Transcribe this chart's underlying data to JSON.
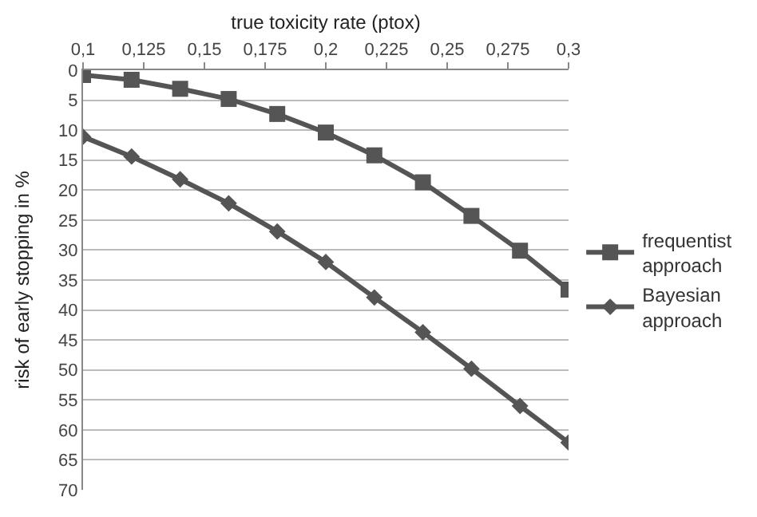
{
  "chart_data": {
    "type": "line",
    "xlabel": "true toxicity rate (ptox)",
    "ylabel": "risk of early stopping in %",
    "x": [
      0.1,
      0.12,
      0.14,
      0.16,
      0.18,
      0.2,
      0.22,
      0.24,
      0.26,
      0.28,
      0.3
    ],
    "series": [
      {
        "name": "frequentist approach",
        "color": "#555555",
        "marker": "square",
        "values": [
          0.8,
          1.6,
          3.1,
          4.8,
          7.3,
          10.4,
          14.2,
          18.7,
          24.3,
          30.1,
          36.6
        ]
      },
      {
        "name": "Bayesian approach",
        "color": "#555555",
        "marker": "diamond",
        "values": [
          11.1,
          14.4,
          18.2,
          22.2,
          26.9,
          32,
          37.9,
          43.7,
          49.8,
          56,
          62.1
        ]
      }
    ],
    "xlim": [
      0.1,
      0.3
    ],
    "xticks": [
      {
        "value": 0.1,
        "label": "0,1"
      },
      {
        "value": 0.125,
        "label": "0,125"
      },
      {
        "value": 0.15,
        "label": "0,15"
      },
      {
        "value": 0.175,
        "label": "0,175"
      },
      {
        "value": 0.2,
        "label": "0,2"
      },
      {
        "value": 0.225,
        "label": "0,225"
      },
      {
        "value": 0.25,
        "label": "0,25"
      },
      {
        "value": 0.275,
        "label": "0,275"
      },
      {
        "value": 0.3,
        "label": "0,3"
      }
    ],
    "ylim": [
      70,
      0
    ],
    "yticks": [
      0,
      5,
      10,
      15,
      20,
      25,
      30,
      35,
      40,
      45,
      50,
      55,
      60,
      65,
      70
    ],
    "grid": "y",
    "legend": "right",
    "line_style": "solid"
  }
}
